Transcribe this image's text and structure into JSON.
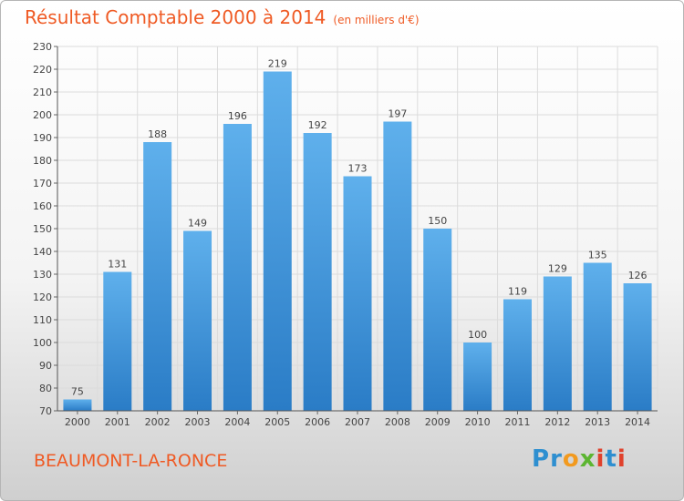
{
  "title": "Résultat Comptable 2000 à 2014",
  "subtitle": "(en milliers d'€)",
  "city": "BEAUMONT-LA-RONCE",
  "logo": {
    "text": "Proxiti",
    "colors": {
      "blue": "#2e8fd0",
      "orange": "#f29a1f",
      "green": "#5cb531",
      "red": "#e0412c"
    }
  },
  "colors": {
    "bar": "#3f96dc",
    "accent": "#ef5a24",
    "grid": "#dcdcdc"
  },
  "chart_data": {
    "type": "bar",
    "title": "Résultat Comptable 2000 à 2014",
    "xlabel": "",
    "ylabel": "",
    "categories": [
      "2000",
      "2001",
      "2002",
      "2003",
      "2004",
      "2005",
      "2006",
      "2007",
      "2008",
      "2009",
      "2010",
      "2011",
      "2012",
      "2013",
      "2014"
    ],
    "values": [
      75,
      131,
      188,
      149,
      196,
      219,
      192,
      173,
      197,
      150,
      100,
      119,
      129,
      135,
      126
    ],
    "ylim": [
      70,
      230
    ],
    "yticks": [
      70,
      80,
      90,
      100,
      110,
      120,
      130,
      140,
      150,
      160,
      170,
      180,
      190,
      200,
      210,
      220,
      230
    ],
    "grid": true
  }
}
